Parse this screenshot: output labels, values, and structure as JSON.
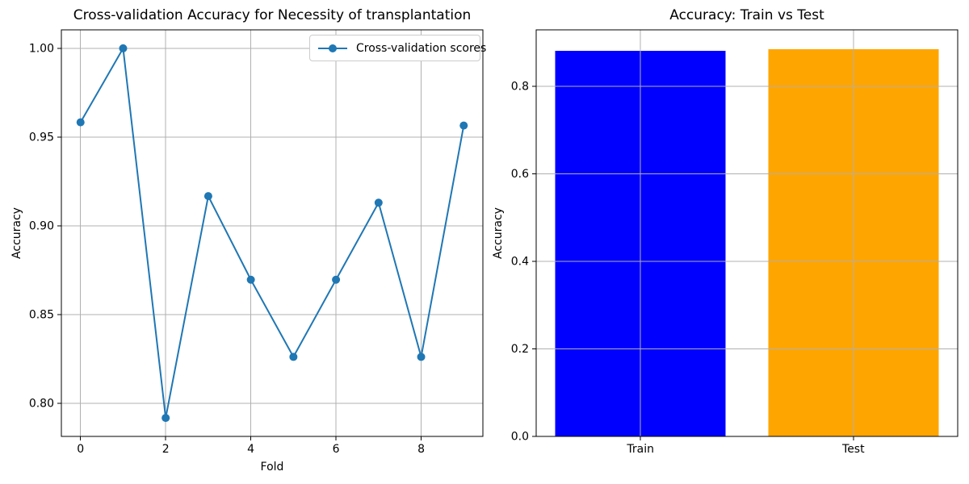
{
  "figure": {
    "background": "#ffffff"
  },
  "colors": {
    "grid": "#b0b0b0",
    "spine": "#000000",
    "text": "#000000",
    "legend_border": "#cccccc",
    "legend_background": "#ffffff"
  },
  "chart_data": [
    {
      "type": "line",
      "title": "Cross-validation Accuracy for Necessity of transplantation",
      "xlabel": "Fold",
      "ylabel": "Accuracy",
      "x": [
        0,
        1,
        2,
        3,
        4,
        5,
        6,
        7,
        8,
        9
      ],
      "values": [
        0.9583,
        1.0,
        0.7917,
        0.9167,
        0.8696,
        0.8261,
        0.8696,
        0.913,
        0.8261,
        0.9565
      ],
      "series_name": "Cross-validation scores",
      "line_color": "#1f77b4",
      "marker": "circle",
      "xlim": [
        -0.45,
        9.45
      ],
      "ylim": [
        0.78128,
        1.01042
      ],
      "xticks": {
        "values": [
          0,
          2,
          4,
          6,
          8
        ],
        "labels": [
          "0",
          "2",
          "4",
          "6",
          "8"
        ]
      },
      "yticks": {
        "values": [
          0.8,
          0.85,
          0.9,
          0.95,
          1.0
        ],
        "labels": [
          "0.80",
          "0.85",
          "0.90",
          "0.95",
          "1.00"
        ]
      },
      "grid": true,
      "legend": {
        "position": "upper-right",
        "entries": [
          "Cross-validation scores"
        ]
      }
    },
    {
      "type": "bar",
      "title": "Accuracy: Train vs Test",
      "xlabel": "",
      "ylabel": "Accuracy",
      "categories": [
        "Train",
        "Test"
      ],
      "values": [
        0.881,
        0.885
      ],
      "bar_colors": [
        "#0000ff",
        "#ffa500"
      ],
      "bar_width": 0.8,
      "xlim": [
        -0.49,
        1.49
      ],
      "ylim": [
        0,
        0.9293
      ],
      "xticks": {
        "values": [
          0,
          1
        ],
        "labels": [
          "Train",
          "Test"
        ]
      },
      "yticks": {
        "values": [
          0.0,
          0.2,
          0.4,
          0.6,
          0.8
        ],
        "labels": [
          "0.0",
          "0.2",
          "0.4",
          "0.6",
          "0.8"
        ]
      },
      "grid": true,
      "legend": null
    }
  ]
}
